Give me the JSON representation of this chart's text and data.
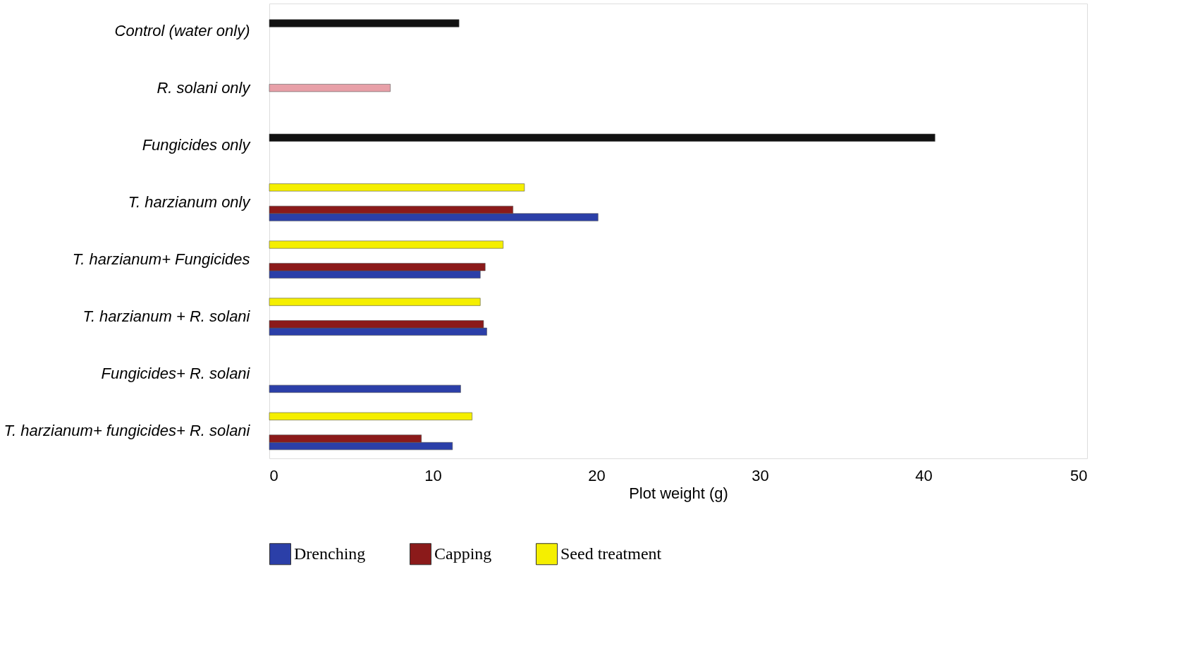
{
  "chart_data": {
    "type": "bar",
    "orientation": "horizontal",
    "xlabel": "Plot weight (g)",
    "categories": [
      "Control (water only)",
      "R. solani only",
      "Fungicides only",
      "T. harzianum only",
      "T. harzianum+ Fungicides",
      "T. harzianum + R. solani",
      "Fungicides+ R. solani",
      "T. harzianum+ fungicides+ R. solani"
    ],
    "series": [
      {
        "name": "Drenching",
        "color": "#2b3fa8",
        "values": [
          null,
          null,
          null,
          20.1,
          12.9,
          13.3,
          11.7,
          11.2
        ]
      },
      {
        "name": "Capping",
        "color": "#8b1a1a",
        "values": [
          null,
          null,
          null,
          14.9,
          13.2,
          13.1,
          null,
          9.3
        ]
      },
      {
        "name": "Seed treatment",
        "color": "#f5ef00",
        "values": [
          null,
          null,
          null,
          15.6,
          14.3,
          12.9,
          null,
          12.4
        ]
      },
      {
        "color": "#111111",
        "values": [
          11.6,
          null,
          40.7,
          null,
          null,
          null,
          null,
          null
        ]
      },
      {
        "color": "#e8a0a8",
        "values": [
          null,
          7.4,
          null,
          null,
          null,
          null,
          null,
          null
        ]
      }
    ],
    "xlim": [
      0,
      50
    ],
    "xticks": [
      0,
      10,
      20,
      30,
      40,
      50
    ],
    "grid": false,
    "legend": "bottom"
  }
}
